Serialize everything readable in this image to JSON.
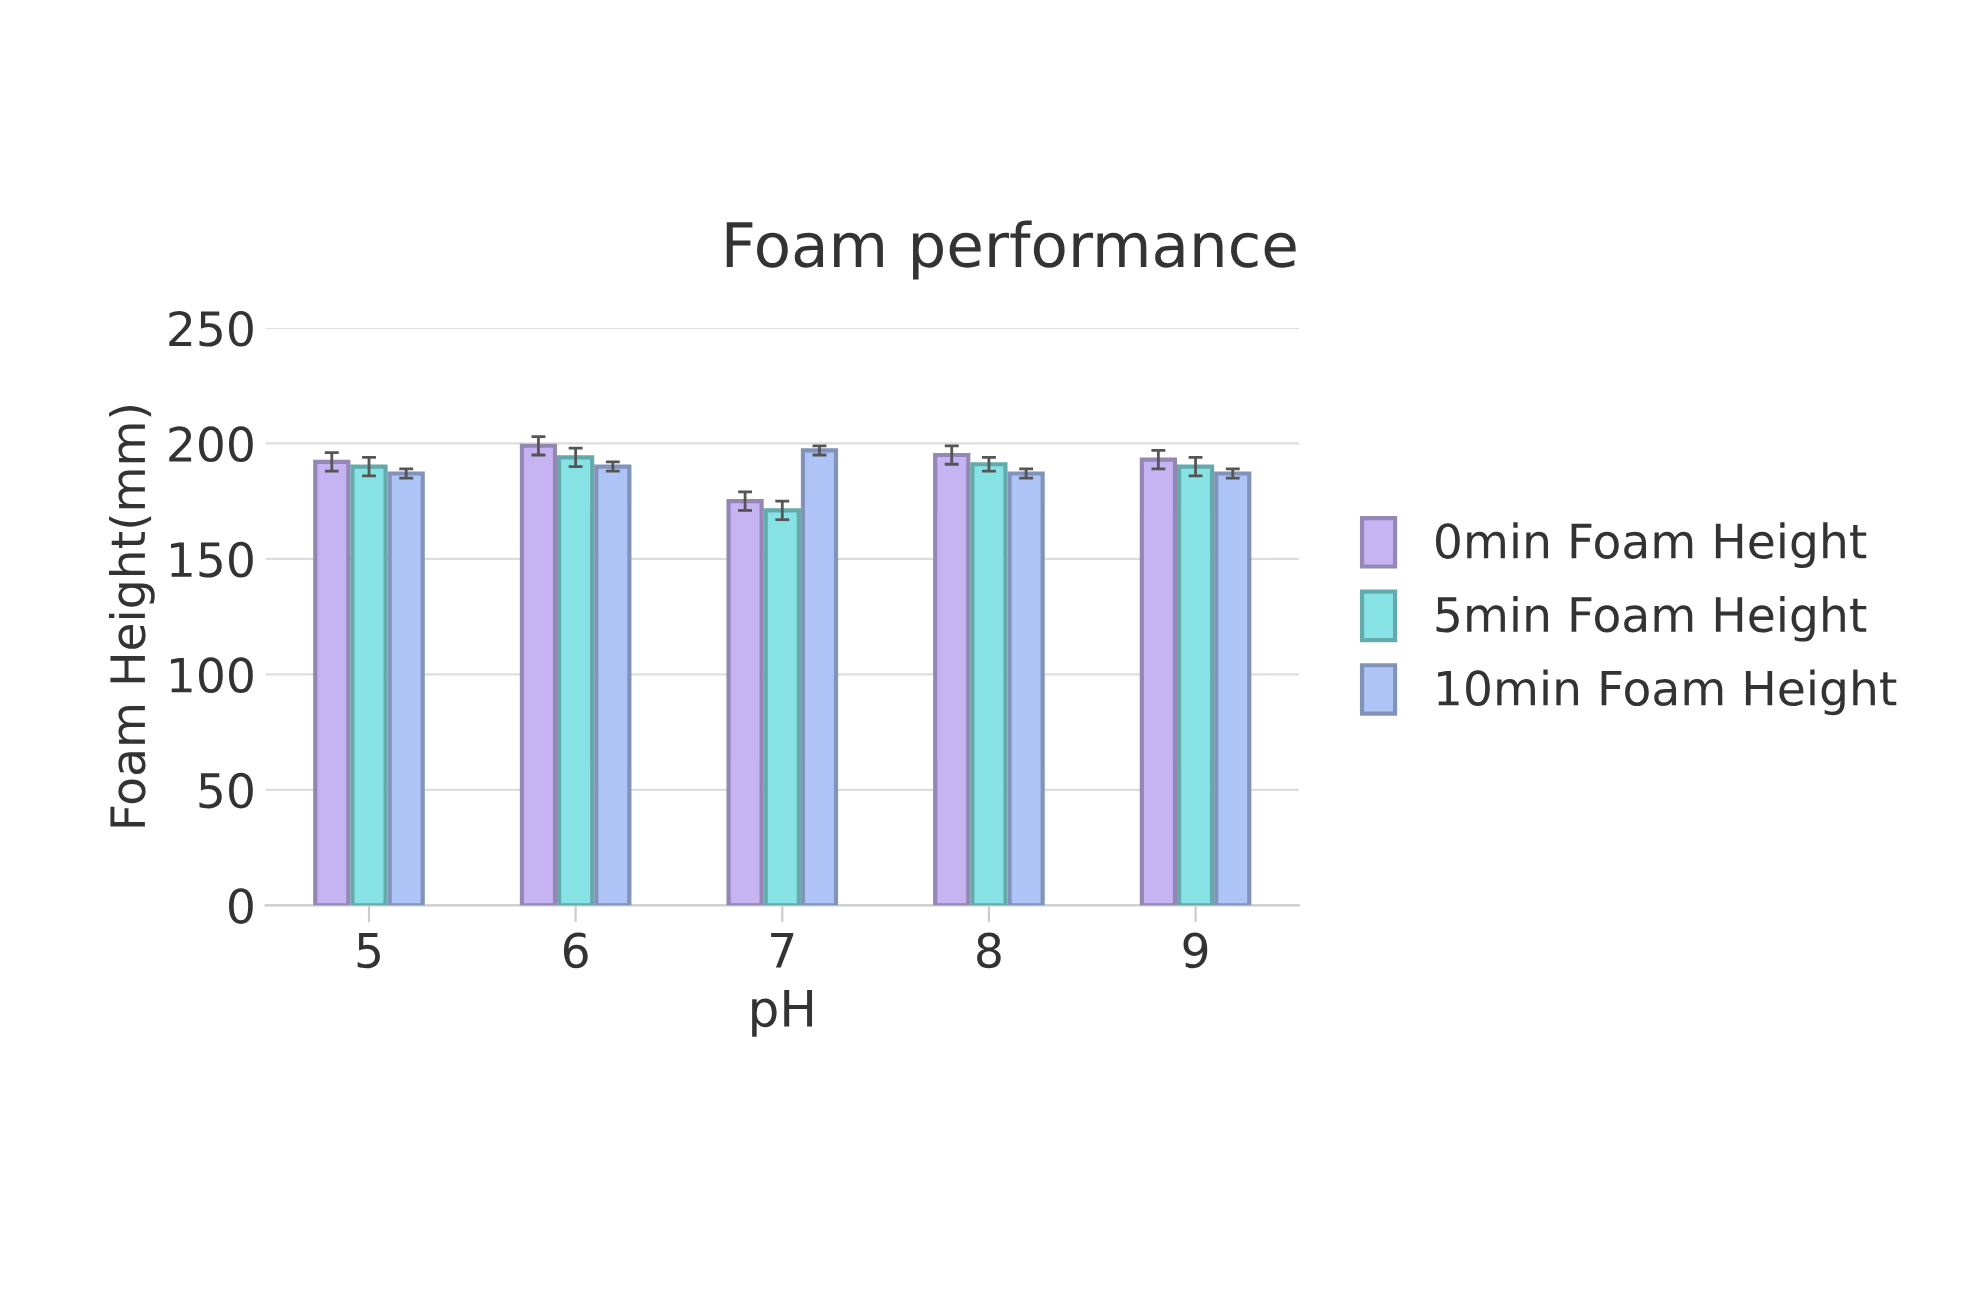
{
  "chart_data": {
    "type": "bar",
    "title": "Foam performance",
    "xlabel": "pH",
    "ylabel": "Foam Height(mm)",
    "categories": [
      "5",
      "6",
      "7",
      "8",
      "9"
    ],
    "series": [
      {
        "name": "0min Foam Height",
        "color": "#c5b3f2",
        "values": [
          192,
          199,
          175,
          195,
          193
        ],
        "errors": [
          4,
          4,
          4,
          4,
          4
        ]
      },
      {
        "name": "5min Foam Height",
        "color": "#86e2e4",
        "values": [
          190,
          194,
          171,
          191,
          190
        ],
        "errors": [
          4,
          4,
          4,
          3,
          4
        ]
      },
      {
        "name": "10min Foam Height",
        "color": "#aec4f7",
        "values": [
          187,
          190,
          197,
          187,
          187
        ],
        "errors": [
          2,
          2,
          2,
          2,
          2
        ]
      }
    ],
    "ylim": [
      0,
      250
    ],
    "yticks": [
      0,
      50,
      100,
      150,
      200,
      250
    ],
    "grid": "y",
    "legend": "right"
  }
}
